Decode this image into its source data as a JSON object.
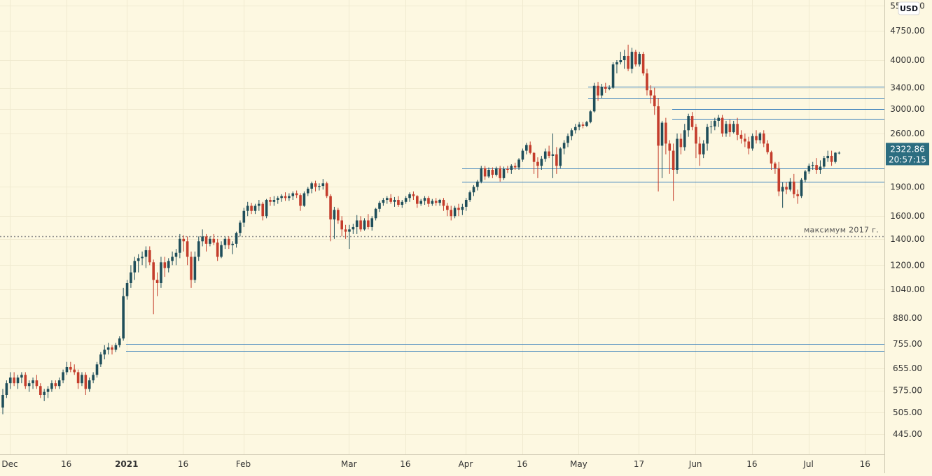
{
  "currency": "USD",
  "price_tag": {
    "price": "2322.86",
    "timer": "20:57:15",
    "value": 2322.86,
    "color": "#2c6d80"
  },
  "annotation": {
    "text": "максимум 2017 г.",
    "value": 1420
  },
  "colors": {
    "background": "#fdf8e1",
    "up": "#1f4e5a",
    "down": "#c43d2c",
    "level_line": "#3a80bb",
    "grid": "#f0ead0"
  },
  "chart_data": {
    "type": "candlestick",
    "y_scale": "log",
    "ylim": [
      400,
      5600
    ],
    "y_ticks": [
      {
        "label": "445.00",
        "value": 445
      },
      {
        "label": "505.00",
        "value": 505
      },
      {
        "label": "575.00",
        "value": 575
      },
      {
        "label": "655.00",
        "value": 655
      },
      {
        "label": "755.00",
        "value": 755
      },
      {
        "label": "880.00",
        "value": 880
      },
      {
        "label": "1040.00",
        "value": 1040
      },
      {
        "label": "1200.00",
        "value": 1200
      },
      {
        "label": "1400.00",
        "value": 1400
      },
      {
        "label": "1600.00",
        "value": 1600
      },
      {
        "label": "1900.00",
        "value": 1900
      },
      {
        "label": "2600.00",
        "value": 2600
      },
      {
        "label": "3000.00",
        "value": 3000
      },
      {
        "label": "3400.00",
        "value": 3400
      },
      {
        "label": "4000.00",
        "value": 4000
      },
      {
        "label": "4750.00",
        "value": 4750
      },
      {
        "label": "5500.00",
        "value": 5500
      }
    ],
    "x_ticks": [
      {
        "label": "Dec",
        "index": 0,
        "bold": false
      },
      {
        "label": "16",
        "index": 15,
        "bold": false
      },
      {
        "label": "2021",
        "index": 31,
        "bold": true
      },
      {
        "label": "16",
        "index": 46,
        "bold": false
      },
      {
        "label": "Feb",
        "index": 62,
        "bold": false
      },
      {
        "label": "Mar",
        "index": 90,
        "bold": false
      },
      {
        "label": "16",
        "index": 105,
        "bold": false
      },
      {
        "label": "Apr",
        "index": 121,
        "bold": false
      },
      {
        "label": "16",
        "index": 136,
        "bold": false
      },
      {
        "label": "May",
        "index": 151,
        "bold": false
      },
      {
        "label": "17",
        "index": 167,
        "bold": false
      },
      {
        "label": "Jun",
        "index": 182,
        "bold": false
      },
      {
        "label": "16",
        "index": 197,
        "bold": false
      },
      {
        "label": "Jul",
        "index": 212,
        "bold": false
      },
      {
        "label": "16",
        "index": 227,
        "bold": false
      }
    ],
    "levels": [
      725,
      755,
      1960,
      2120,
      2830,
      3000,
      3210,
      3420
    ],
    "candles": [
      [
        520,
        580,
        500,
        560
      ],
      [
        560,
        610,
        550,
        600
      ],
      [
        600,
        640,
        580,
        620
      ],
      [
        620,
        640,
        590,
        600
      ],
      [
        600,
        630,
        580,
        620
      ],
      [
        620,
        640,
        600,
        630
      ],
      [
        630,
        640,
        580,
        590
      ],
      [
        590,
        610,
        570,
        600
      ],
      [
        600,
        620,
        580,
        610
      ],
      [
        610,
        630,
        580,
        590
      ],
      [
        590,
        600,
        550,
        560
      ],
      [
        560,
        580,
        540,
        570
      ],
      [
        570,
        590,
        550,
        580
      ],
      [
        580,
        610,
        570,
        600
      ],
      [
        600,
        610,
        580,
        590
      ],
      [
        590,
        620,
        580,
        610
      ],
      [
        610,
        650,
        600,
        640
      ],
      [
        640,
        680,
        630,
        660
      ],
      [
        660,
        680,
        640,
        650
      ],
      [
        650,
        670,
        630,
        640
      ],
      [
        640,
        650,
        580,
        600
      ],
      [
        600,
        640,
        590,
        630
      ],
      [
        630,
        640,
        560,
        580
      ],
      [
        580,
        620,
        570,
        610
      ],
      [
        610,
        640,
        600,
        630
      ],
      [
        630,
        680,
        620,
        670
      ],
      [
        670,
        720,
        660,
        710
      ],
      [
        710,
        750,
        690,
        730
      ],
      [
        730,
        760,
        710,
        740
      ],
      [
        740,
        750,
        710,
        730
      ],
      [
        730,
        760,
        720,
        750
      ],
      [
        750,
        790,
        740,
        780
      ],
      [
        780,
        1050,
        770,
        1000
      ],
      [
        1000,
        1100,
        980,
        1080
      ],
      [
        1080,
        1200,
        1050,
        1150
      ],
      [
        1150,
        1260,
        1100,
        1230
      ],
      [
        1230,
        1280,
        1150,
        1250
      ],
      [
        1250,
        1300,
        1200,
        1260
      ],
      [
        1260,
        1340,
        1180,
        1310
      ],
      [
        1310,
        1340,
        1200,
        1220
      ],
      [
        1220,
        1240,
        900,
        1100
      ],
      [
        1100,
        1150,
        1000,
        1080
      ],
      [
        1080,
        1260,
        1050,
        1220
      ],
      [
        1220,
        1260,
        1120,
        1180
      ],
      [
        1180,
        1250,
        1150,
        1230
      ],
      [
        1230,
        1300,
        1200,
        1260
      ],
      [
        1260,
        1320,
        1200,
        1290
      ],
      [
        1290,
        1440,
        1250,
        1400
      ],
      [
        1400,
        1430,
        1300,
        1380
      ],
      [
        1380,
        1420,
        1200,
        1260
      ],
      [
        1260,
        1300,
        1050,
        1100
      ],
      [
        1100,
        1300,
        1080,
        1260
      ],
      [
        1260,
        1420,
        1230,
        1380
      ],
      [
        1380,
        1480,
        1340,
        1420
      ],
      [
        1420,
        1440,
        1300,
        1360
      ],
      [
        1360,
        1420,
        1340,
        1400
      ],
      [
        1400,
        1440,
        1350,
        1370
      ],
      [
        1370,
        1400,
        1230,
        1260
      ],
      [
        1260,
        1380,
        1250,
        1350
      ],
      [
        1350,
        1420,
        1320,
        1400
      ],
      [
        1400,
        1420,
        1320,
        1350
      ],
      [
        1350,
        1380,
        1280,
        1360
      ],
      [
        1360,
        1460,
        1330,
        1450
      ],
      [
        1450,
        1560,
        1420,
        1540
      ],
      [
        1540,
        1680,
        1500,
        1650
      ],
      [
        1650,
        1740,
        1600,
        1700
      ],
      [
        1700,
        1730,
        1620,
        1650
      ],
      [
        1650,
        1720,
        1620,
        1700
      ],
      [
        1700,
        1760,
        1650,
        1720
      ],
      [
        1720,
        1740,
        1560,
        1600
      ],
      [
        1600,
        1770,
        1580,
        1760
      ],
      [
        1760,
        1790,
        1700,
        1740
      ],
      [
        1740,
        1800,
        1700,
        1760
      ],
      [
        1760,
        1800,
        1720,
        1780
      ],
      [
        1780,
        1820,
        1740,
        1800
      ],
      [
        1800,
        1840,
        1750,
        1780
      ],
      [
        1780,
        1830,
        1750,
        1800
      ],
      [
        1800,
        1850,
        1760,
        1830
      ],
      [
        1830,
        1860,
        1780,
        1810
      ],
      [
        1810,
        1830,
        1650,
        1700
      ],
      [
        1700,
        1850,
        1690,
        1830
      ],
      [
        1830,
        1900,
        1800,
        1880
      ],
      [
        1880,
        1960,
        1830,
        1940
      ],
      [
        1940,
        1970,
        1850,
        1900
      ],
      [
        1900,
        1940,
        1860,
        1910
      ],
      [
        1910,
        1990,
        1870,
        1940
      ],
      [
        1940,
        1960,
        1780,
        1800
      ],
      [
        1800,
        1820,
        1380,
        1570
      ],
      [
        1570,
        1690,
        1400,
        1660
      ],
      [
        1660,
        1680,
        1530,
        1560
      ],
      [
        1560,
        1600,
        1420,
        1480
      ],
      [
        1480,
        1520,
        1400,
        1460
      ],
      [
        1460,
        1520,
        1320,
        1480
      ],
      [
        1480,
        1530,
        1440,
        1500
      ],
      [
        1500,
        1610,
        1440,
        1560
      ],
      [
        1560,
        1600,
        1460,
        1480
      ],
      [
        1480,
        1580,
        1470,
        1560
      ],
      [
        1560,
        1620,
        1480,
        1500
      ],
      [
        1500,
        1600,
        1470,
        1580
      ],
      [
        1580,
        1680,
        1560,
        1670
      ],
      [
        1670,
        1750,
        1640,
        1730
      ],
      [
        1730,
        1780,
        1700,
        1760
      ],
      [
        1760,
        1800,
        1720,
        1780
      ],
      [
        1780,
        1820,
        1720,
        1740
      ],
      [
        1740,
        1790,
        1690,
        1760
      ],
      [
        1760,
        1800,
        1690,
        1710
      ],
      [
        1710,
        1760,
        1680,
        1740
      ],
      [
        1740,
        1800,
        1720,
        1780
      ],
      [
        1780,
        1840,
        1740,
        1820
      ],
      [
        1820,
        1850,
        1760,
        1800
      ],
      [
        1800,
        1810,
        1680,
        1720
      ],
      [
        1720,
        1770,
        1700,
        1750
      ],
      [
        1750,
        1800,
        1710,
        1780
      ],
      [
        1780,
        1800,
        1690,
        1720
      ],
      [
        1720,
        1770,
        1700,
        1750
      ],
      [
        1750,
        1780,
        1700,
        1730
      ],
      [
        1730,
        1770,
        1700,
        1760
      ],
      [
        1760,
        1780,
        1650,
        1700
      ],
      [
        1700,
        1730,
        1600,
        1660
      ],
      [
        1660,
        1700,
        1560,
        1600
      ],
      [
        1600,
        1700,
        1580,
        1680
      ],
      [
        1680,
        1720,
        1600,
        1660
      ],
      [
        1660,
        1720,
        1610,
        1690
      ],
      [
        1690,
        1780,
        1650,
        1760
      ],
      [
        1760,
        1860,
        1740,
        1840
      ],
      [
        1840,
        1920,
        1800,
        1900
      ],
      [
        1900,
        1980,
        1860,
        1960
      ],
      [
        1960,
        2150,
        1940,
        2120
      ],
      [
        2120,
        2150,
        1980,
        2020
      ],
      [
        2020,
        2130,
        2000,
        2100
      ],
      [
        2100,
        2130,
        2000,
        2040
      ],
      [
        2040,
        2140,
        2020,
        2120
      ],
      [
        2120,
        2150,
        1960,
        2000
      ],
      [
        2000,
        2140,
        1980,
        2110
      ],
      [
        2110,
        2150,
        2060,
        2100
      ],
      [
        2100,
        2170,
        2050,
        2150
      ],
      [
        2150,
        2190,
        2100,
        2130
      ],
      [
        2130,
        2250,
        2100,
        2230
      ],
      [
        2230,
        2380,
        2200,
        2350
      ],
      [
        2350,
        2460,
        2300,
        2430
      ],
      [
        2430,
        2480,
        2300,
        2320
      ],
      [
        2320,
        2330,
        2050,
        2200
      ],
      [
        2200,
        2260,
        2000,
        2150
      ],
      [
        2150,
        2280,
        2100,
        2240
      ],
      [
        2240,
        2380,
        2200,
        2340
      ],
      [
        2340,
        2420,
        2250,
        2280
      ],
      [
        2280,
        2600,
        2000,
        2300
      ],
      [
        2300,
        2400,
        2050,
        2150
      ],
      [
        2150,
        2400,
        2120,
        2380
      ],
      [
        2380,
        2500,
        2300,
        2460
      ],
      [
        2460,
        2600,
        2400,
        2560
      ],
      [
        2560,
        2680,
        2500,
        2650
      ],
      [
        2650,
        2750,
        2600,
        2700
      ],
      [
        2700,
        2780,
        2650,
        2740
      ],
      [
        2740,
        2780,
        2680,
        2720
      ],
      [
        2720,
        2800,
        2700,
        2780
      ],
      [
        2780,
        2980,
        2760,
        2960
      ],
      [
        2960,
        3500,
        2940,
        3440
      ],
      [
        3440,
        3520,
        3150,
        3250
      ],
      [
        3250,
        3480,
        3200,
        3420
      ],
      [
        3420,
        3500,
        3300,
        3380
      ],
      [
        3380,
        3450,
        3350,
        3400
      ],
      [
        3400,
        3950,
        3380,
        3900
      ],
      [
        3900,
        4000,
        3700,
        3950
      ],
      [
        3950,
        4200,
        3900,
        4000
      ],
      [
        4000,
        4250,
        3800,
        4100
      ],
      [
        4100,
        4380,
        3750,
        3800
      ],
      [
        3800,
        4300,
        3700,
        4200
      ],
      [
        4200,
        4250,
        3850,
        3900
      ],
      [
        3900,
        4200,
        3850,
        4150
      ],
      [
        4150,
        4200,
        3650,
        3700
      ],
      [
        3700,
        3800,
        3250,
        3350
      ],
      [
        3350,
        3450,
        3100,
        3250
      ],
      [
        3250,
        3400,
        2900,
        3050
      ],
      [
        3050,
        3200,
        1850,
        2420
      ],
      [
        2420,
        2800,
        2000,
        2770
      ],
      [
        2770,
        2850,
        2300,
        2450
      ],
      [
        2450,
        2500,
        2050,
        2350
      ],
      [
        2350,
        2450,
        1750,
        2100
      ],
      [
        2100,
        2600,
        2050,
        2520
      ],
      [
        2520,
        2600,
        2300,
        2400
      ],
      [
        2400,
        2750,
        2350,
        2650
      ],
      [
        2650,
        2920,
        2550,
        2880
      ],
      [
        2880,
        2950,
        2650,
        2700
      ],
      [
        2700,
        2750,
        2250,
        2450
      ],
      [
        2450,
        2550,
        2150,
        2300
      ],
      [
        2300,
        2500,
        2250,
        2450
      ],
      [
        2450,
        2750,
        2350,
        2700
      ],
      [
        2700,
        2800,
        2600,
        2710
      ],
      [
        2710,
        2850,
        2650,
        2800
      ],
      [
        2800,
        2900,
        2700,
        2850
      ],
      [
        2850,
        2900,
        2550,
        2600
      ],
      [
        2600,
        2800,
        2550,
        2750
      ],
      [
        2750,
        2820,
        2550,
        2620
      ],
      [
        2620,
        2800,
        2600,
        2750
      ],
      [
        2750,
        2850,
        2500,
        2580
      ],
      [
        2580,
        2650,
        2450,
        2520
      ],
      [
        2520,
        2600,
        2400,
        2480
      ],
      [
        2480,
        2550,
        2300,
        2380
      ],
      [
        2380,
        2600,
        2350,
        2560
      ],
      [
        2560,
        2650,
        2450,
        2500
      ],
      [
        2500,
        2620,
        2450,
        2600
      ],
      [
        2600,
        2650,
        2400,
        2450
      ],
      [
        2450,
        2500,
        2300,
        2330
      ],
      [
        2330,
        2350,
        2100,
        2180
      ],
      [
        2180,
        2200,
        2050,
        2120
      ],
      [
        2120,
        2200,
        1800,
        1850
      ],
      [
        1850,
        1950,
        1680,
        1900
      ],
      [
        1900,
        1950,
        1820,
        1870
      ],
      [
        1870,
        2000,
        1850,
        1960
      ],
      [
        1960,
        2050,
        1780,
        1820
      ],
      [
        1820,
        1870,
        1720,
        1800
      ],
      [
        1800,
        2000,
        1780,
        1980
      ],
      [
        1980,
        2100,
        1950,
        2080
      ],
      [
        2080,
        2180,
        2050,
        2150
      ],
      [
        2150,
        2200,
        2100,
        2160
      ],
      [
        2160,
        2250,
        2050,
        2100
      ],
      [
        2100,
        2220,
        2050,
        2140
      ],
      [
        2140,
        2280,
        2120,
        2250
      ],
      [
        2250,
        2350,
        2200,
        2280
      ],
      [
        2280,
        2350,
        2150,
        2200
      ],
      [
        2200,
        2330,
        2180,
        2322
      ],
      [
        2322,
        2340,
        2300,
        2322
      ]
    ]
  }
}
